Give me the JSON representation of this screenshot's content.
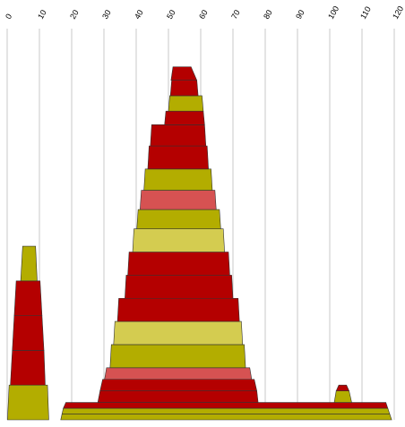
{
  "chart_data": {
    "type": "area",
    "description_of_marks": "stacked layered stepped mounds along a numeric x axis",
    "x_ticks": [
      0,
      10,
      20,
      30,
      40,
      50,
      60,
      70,
      80,
      90,
      100,
      110,
      120
    ],
    "xlim": [
      0,
      120
    ],
    "grid": true,
    "colors": {
      "red": "#b40000",
      "olive": "#b3ad00",
      "pink": "#d65252",
      "lightolive": "#d4cc50"
    },
    "groups": [
      {
        "layers": [
          {
            "y0": 0.0,
            "y1": 0.09,
            "x0b": 0.1,
            "x1b": 12.9,
            "x0t": 0.6,
            "x1t": 12.5,
            "color": "olive"
          },
          {
            "y0": 0.09,
            "y1": 0.18,
            "x0b": 1.0,
            "x1b": 11.8,
            "x0t": 1.6,
            "x1t": 11.4,
            "color": "red"
          },
          {
            "y0": 0.18,
            "y1": 0.27,
            "x0b": 1.6,
            "x1b": 11.4,
            "x0t": 2.2,
            "x1t": 10.8,
            "color": "red"
          },
          {
            "y0": 0.27,
            "y1": 0.36,
            "x0b": 2.2,
            "x1b": 10.8,
            "x0t": 2.8,
            "x1t": 10.2,
            "color": "red"
          },
          {
            "y0": 0.36,
            "y1": 0.45,
            "x0b": 4.2,
            "x1b": 9.3,
            "x0t": 4.8,
            "x1t": 8.8,
            "color": "olive"
          }
        ]
      },
      {
        "layers": [
          {
            "y0": 0.0,
            "y1": 0.015,
            "x0b": 16.6,
            "x1b": 119.2,
            "x0t": 17.0,
            "x1t": 118.6,
            "color": "olive"
          },
          {
            "y0": 0.015,
            "y1": 0.03,
            "x0b": 17.0,
            "x1b": 118.6,
            "x0t": 17.4,
            "x1t": 118.0,
            "color": "olive"
          },
          {
            "y0": 0.03,
            "y1": 0.045,
            "x0b": 17.4,
            "x1b": 118.0,
            "x0t": 18.2,
            "x1t": 117.4,
            "color": "red"
          },
          {
            "y0": 0.045,
            "y1": 0.075,
            "x0b": 28.1,
            "x1b": 77.8,
            "x0t": 28.8,
            "x1t": 77.4,
            "color": "red"
          },
          {
            "y0": 0.075,
            "y1": 0.105,
            "x0b": 28.8,
            "x1b": 77.4,
            "x0t": 29.6,
            "x1t": 76.6,
            "color": "red"
          },
          {
            "y0": 0.105,
            "y1": 0.135,
            "x0b": 30.2,
            "x1b": 75.8,
            "x0t": 30.8,
            "x1t": 75.2,
            "color": "pink"
          },
          {
            "y0": 0.135,
            "y1": 0.195,
            "x0b": 31.9,
            "x1b": 73.9,
            "x0t": 32.3,
            "x1t": 73.5,
            "color": "olive"
          },
          {
            "y0": 0.195,
            "y1": 0.255,
            "x0b": 33.0,
            "x1b": 73.0,
            "x0t": 33.4,
            "x1t": 72.6,
            "color": "lightolive"
          },
          {
            "y0": 0.255,
            "y1": 0.315,
            "x0b": 34.2,
            "x1b": 72.0,
            "x0t": 34.6,
            "x1t": 71.6,
            "color": "red"
          },
          {
            "y0": 0.315,
            "y1": 0.375,
            "x0b": 36.5,
            "x1b": 70.0,
            "x0t": 36.9,
            "x1t": 69.6,
            "color": "red"
          },
          {
            "y0": 0.375,
            "y1": 0.435,
            "x0b": 37.4,
            "x1b": 69.0,
            "x0t": 37.8,
            "x1t": 68.6,
            "color": "red"
          },
          {
            "y0": 0.435,
            "y1": 0.495,
            "x0b": 38.9,
            "x1b": 67.4,
            "x0t": 39.3,
            "x1t": 67.0,
            "color": "lightolive"
          },
          {
            "y0": 0.495,
            "y1": 0.545,
            "x0b": 40.2,
            "x1b": 66.2,
            "x0t": 40.6,
            "x1t": 65.8,
            "color": "olive"
          },
          {
            "y0": 0.545,
            "y1": 0.595,
            "x0b": 41.2,
            "x1b": 64.8,
            "x0t": 41.6,
            "x1t": 64.4,
            "color": "pink"
          },
          {
            "y0": 0.595,
            "y1": 0.65,
            "x0b": 42.4,
            "x1b": 63.6,
            "x0t": 42.8,
            "x1t": 63.2,
            "color": "olive"
          },
          {
            "y0": 0.65,
            "y1": 0.71,
            "x0b": 43.6,
            "x1b": 62.4,
            "x0t": 44.0,
            "x1t": 62.0,
            "color": "red"
          },
          {
            "y0": 0.71,
            "y1": 0.765,
            "x0b": 44.4,
            "x1b": 61.6,
            "x0t": 44.8,
            "x1t": 61.2,
            "color": "red"
          },
          {
            "y0": 0.765,
            "y1": 0.8,
            "x0b": 48.8,
            "x1b": 61.2,
            "x0t": 49.2,
            "x1t": 60.8,
            "color": "red"
          },
          {
            "y0": 0.8,
            "y1": 0.84,
            "x0b": 50.0,
            "x1b": 60.8,
            "x0t": 50.4,
            "x1t": 60.4,
            "color": "olive"
          },
          {
            "y0": 0.84,
            "y1": 0.88,
            "x0b": 50.6,
            "x1b": 59.2,
            "x0t": 51.0,
            "x1t": 58.8,
            "color": "red"
          },
          {
            "y0": 0.88,
            "y1": 0.915,
            "x0b": 50.8,
            "x1b": 58.8,
            "x0t": 51.4,
            "x1t": 57.0,
            "color": "red"
          }
        ]
      },
      {
        "layers": [
          {
            "y0": 0.045,
            "y1": 0.075,
            "x0b": 101.4,
            "x1b": 106.8,
            "x0t": 102.0,
            "x1t": 106.0,
            "color": "olive"
          },
          {
            "y0": 0.075,
            "y1": 0.09,
            "x0b": 102.0,
            "x1b": 106.0,
            "x0t": 102.8,
            "x1t": 105.2,
            "color": "red"
          }
        ]
      }
    ]
  }
}
